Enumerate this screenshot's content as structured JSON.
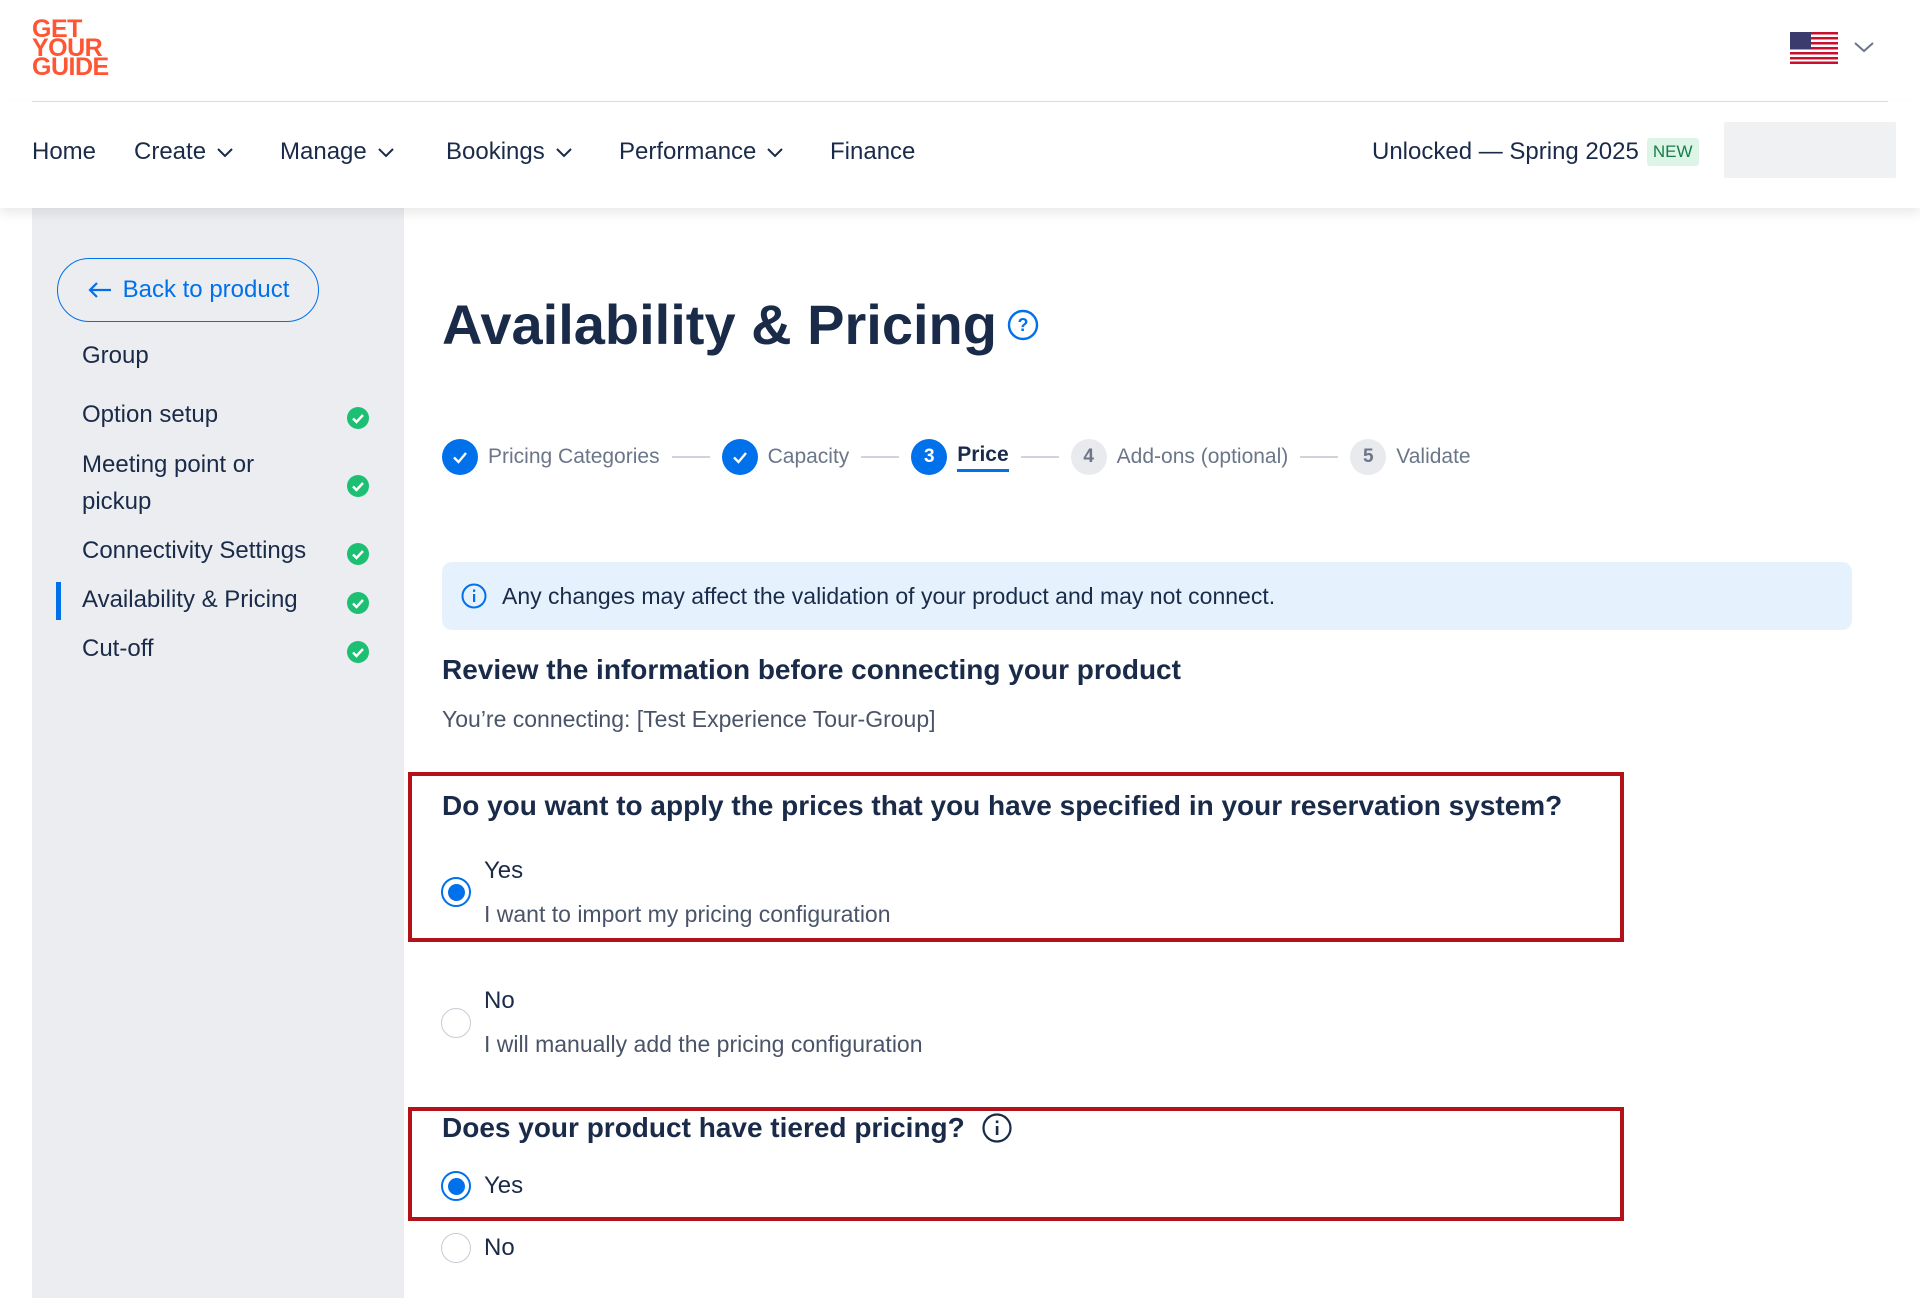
{
  "brand": {
    "logo_lines": [
      "GET",
      "YOUR",
      "GUIDE"
    ],
    "color": "#ff5533"
  },
  "header": {
    "locale_icon": "us-flag-icon"
  },
  "nav": {
    "items": [
      {
        "label": "Home",
        "has_dropdown": false
      },
      {
        "label": "Create",
        "has_dropdown": true
      },
      {
        "label": "Manage",
        "has_dropdown": true
      },
      {
        "label": "Bookings",
        "has_dropdown": true
      },
      {
        "label": "Performance",
        "has_dropdown": true
      },
      {
        "label": "Finance",
        "has_dropdown": false
      }
    ],
    "promo_label": "Unlocked — Spring 2025",
    "promo_badge": "NEW"
  },
  "sidebar": {
    "back_label": "Back to product",
    "group_title": "Group",
    "items": [
      {
        "label": "Option setup",
        "complete": true,
        "active": false
      },
      {
        "label": "Meeting point or pickup",
        "complete": true,
        "active": false
      },
      {
        "label": "Connectivity Settings",
        "complete": true,
        "active": false
      },
      {
        "label": "Availability & Pricing",
        "complete": true,
        "active": true
      },
      {
        "label": "Cut-off",
        "complete": true,
        "active": false
      }
    ]
  },
  "page": {
    "title": "Availability & Pricing",
    "help_icon": "help-circle-icon"
  },
  "stepper": {
    "steps": [
      {
        "number": "1",
        "label": "Pricing Categories",
        "state": "done"
      },
      {
        "number": "2",
        "label": "Capacity",
        "state": "done"
      },
      {
        "number": "3",
        "label": "Price",
        "state": "current"
      },
      {
        "number": "4",
        "label": "Add-ons (optional)",
        "state": "todo"
      },
      {
        "number": "5",
        "label": "Validate",
        "state": "todo"
      }
    ]
  },
  "alert": {
    "text": "Any changes may affect the validation of your product and may not connect."
  },
  "review": {
    "title": "Review the information before connecting your product",
    "subtitle": "You’re connecting: [Test Experience Tour-Group]"
  },
  "question_prices": {
    "title": "Do you want to apply the prices that you have specified in your reservation system?",
    "options": [
      {
        "label": "Yes",
        "description": "I want to import my pricing configuration",
        "selected": true
      },
      {
        "label": "No",
        "description": "I will manually add the pricing configuration",
        "selected": false
      }
    ]
  },
  "question_tiered": {
    "title": "Does your product have tiered pricing?",
    "options": [
      {
        "label": "Yes",
        "selected": true
      },
      {
        "label": "No",
        "selected": false
      }
    ]
  },
  "colors": {
    "accent": "#0071eb",
    "success": "#1dbf73",
    "highlight": "#b3121b",
    "sidebar_bg": "#ebedf0",
    "alert_bg": "#e5f1fd"
  }
}
